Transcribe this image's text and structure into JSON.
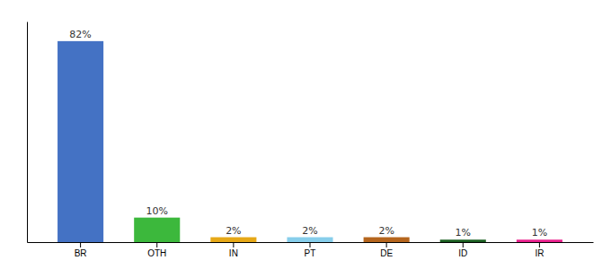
{
  "chart_data": {
    "type": "bar",
    "categories": [
      "BR",
      "OTH",
      "IN",
      "PT",
      "DE",
      "ID",
      "IR"
    ],
    "values": [
      82,
      10,
      2,
      2,
      2,
      1,
      1
    ],
    "value_labels": [
      "82%",
      "10%",
      "2%",
      "2%",
      "2%",
      "1%",
      "1%"
    ],
    "colors": [
      "#4472c4",
      "#3cb83c",
      "#e6a817",
      "#87ceeb",
      "#b5651d",
      "#1a5e20",
      "#e91e8c"
    ],
    "ylim": [
      0,
      90
    ],
    "grid": false,
    "data_labels": true,
    "tick_labels": "x"
  }
}
